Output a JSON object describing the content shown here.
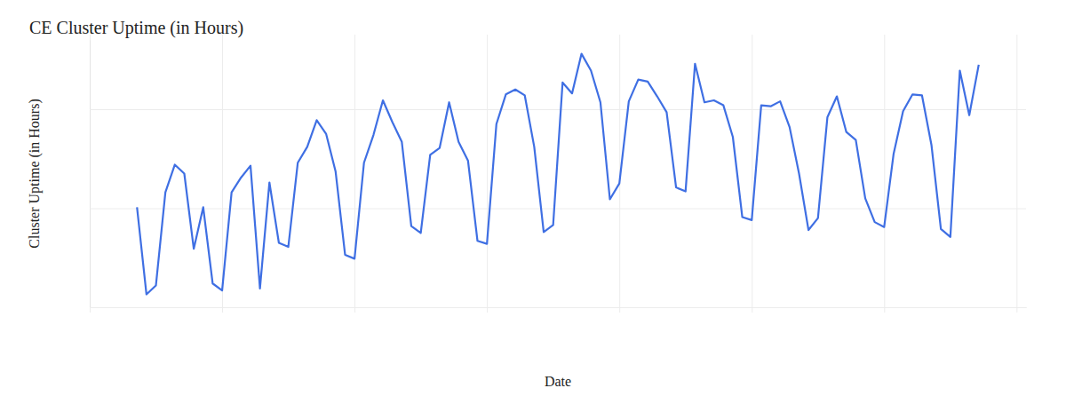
{
  "chart_data": {
    "type": "line",
    "title": "CE Cluster Uptime (in Hours)",
    "xlabel": "Date",
    "ylabel": "Cluster Uptime (in Hours)",
    "x": [
      5,
      6,
      7,
      8,
      9,
      10,
      11,
      12,
      13,
      14,
      15,
      16,
      17,
      18,
      19,
      20,
      21,
      22,
      23,
      24,
      25,
      26,
      27,
      28,
      29,
      30,
      31,
      32,
      33,
      34,
      35,
      36,
      37,
      38,
      39,
      40,
      41,
      42,
      43,
      44,
      45,
      46,
      47,
      48,
      49,
      50,
      51,
      52,
      53,
      54,
      55,
      56,
      57,
      58,
      59,
      60,
      61,
      62,
      63,
      64,
      65,
      66,
      67,
      68,
      69,
      70,
      71,
      72,
      73,
      74,
      75,
      76,
      77,
      78,
      79,
      80,
      81,
      82,
      83,
      84,
      85,
      86,
      87,
      88,
      89,
      90,
      91,
      92,
      93,
      94
    ],
    "values": [
      10.1,
      1.3,
      2.2,
      11.6,
      14.4,
      13.5,
      5.9,
      10.1,
      2.4,
      1.7,
      11.6,
      13.1,
      14.3,
      1.9,
      12.6,
      6.5,
      6.1,
      14.6,
      16.2,
      18.9,
      17.5,
      13.7,
      5.3,
      4.9,
      14.6,
      17.4,
      20.9,
      18.7,
      16.7,
      8.2,
      7.5,
      15.4,
      16.1,
      20.7,
      16.7,
      14.8,
      6.7,
      6.4,
      18.5,
      21.5,
      22.0,
      21.4,
      16.2,
      7.6,
      8.3,
      22.7,
      21.6,
      25.6,
      23.9,
      20.7,
      10.9,
      12.5,
      20.8,
      23.0,
      22.8,
      21.3,
      19.7,
      12.1,
      11.7,
      24.6,
      20.7,
      20.9,
      20.4,
      17.2,
      9.1,
      8.8,
      20.4,
      20.3,
      20.8,
      18.2,
      13.5,
      7.8,
      9.0,
      19.2,
      21.3,
      17.7,
      16.9,
      11.0,
      8.6,
      8.1,
      15.5,
      19.8,
      21.5,
      21.4,
      16.4,
      7.9,
      7.1,
      23.9,
      19.4,
      24.5
    ],
    "color": "#3f6fe3",
    "xlim": [
      0,
      99
    ],
    "xticks": [
      0,
      14,
      28,
      42,
      56,
      70,
      84,
      98
    ],
    "ylim": [
      0,
      27
    ],
    "yticks": [
      0,
      10,
      20
    ],
    "grid": true,
    "tick_labels": false
  }
}
